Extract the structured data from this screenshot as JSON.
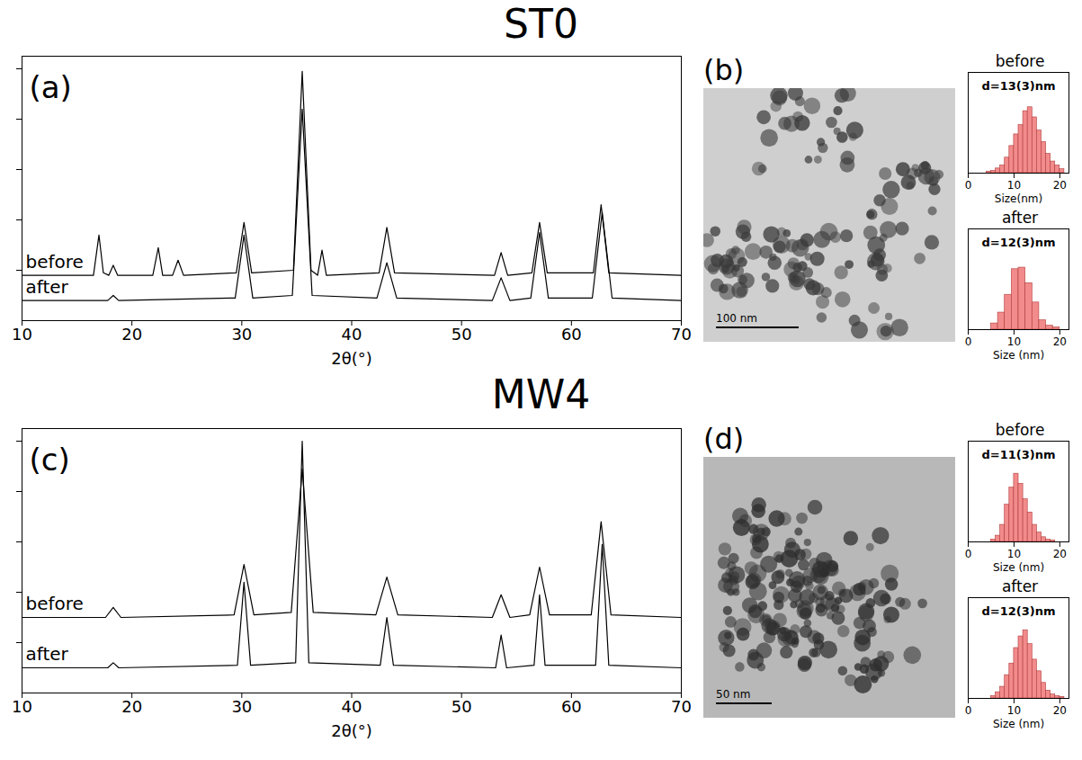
{
  "chart_data": [
    {
      "type": "line",
      "label": "(a)",
      "xlabel": "2θ(°)",
      "xlim": [
        10,
        70
      ],
      "xticks": [
        10,
        20,
        30,
        40,
        50,
        60,
        70
      ],
      "ylim": [
        0,
        105
      ],
      "yticks": [
        20,
        40,
        60,
        80,
        100
      ],
      "tick_labels": "x",
      "series": [
        {
          "name": "before",
          "color": "#000000",
          "line_style": "solid",
          "x": [
            10,
            16.5,
            17,
            17.4,
            17.9,
            18.3,
            18.7,
            21.9,
            22.4,
            22.8,
            23.7,
            24.2,
            24.7,
            29.5,
            30.2,
            30.9,
            34.7,
            35.5,
            36.3,
            36.9,
            37.3,
            37.7,
            42.5,
            43.2,
            43.9,
            53.0,
            53.6,
            54.2,
            56.4,
            57.1,
            57.8,
            62.0,
            62.7,
            63.4,
            70
          ],
          "values": [
            18,
            18,
            34,
            19,
            18,
            22,
            18,
            18,
            29,
            18,
            18,
            24,
            18,
            19,
            39,
            19,
            20,
            99,
            20,
            18,
            28,
            18,
            19,
            37,
            19,
            18,
            27,
            18,
            19,
            39,
            19,
            19,
            46,
            19,
            18
          ]
        },
        {
          "name": "after",
          "color": "#000000",
          "line_style": "solid",
          "x": [
            10,
            17.8,
            18.3,
            18.8,
            29.4,
            30.2,
            31.0,
            34.6,
            35.5,
            36.4,
            42.3,
            43.2,
            44.1,
            52.8,
            53.6,
            54.4,
            56.3,
            57.1,
            57.9,
            61.9,
            62.8,
            63.7,
            70
          ],
          "values": [
            8,
            8,
            10,
            8,
            9,
            34,
            9,
            10,
            84,
            10,
            9,
            23,
            9,
            8,
            17,
            8,
            9,
            35,
            9,
            9,
            43,
            9,
            8
          ]
        }
      ]
    },
    {
      "type": "histogram",
      "subtitle": "before",
      "title": "d=13(3)nm",
      "xlabel": "Size(nm)",
      "xlim": [
        0,
        22
      ],
      "xticks": [
        0,
        10,
        20
      ],
      "ylim": [
        0,
        130
      ],
      "tick_labels": "x",
      "color": "#f28b8b",
      "bins": [
        4,
        5,
        6,
        7,
        8,
        9,
        10,
        11,
        12,
        13,
        14,
        15,
        16,
        17,
        18,
        19,
        20,
        21
      ],
      "values": [
        2,
        3,
        6,
        10,
        20,
        35,
        50,
        62,
        80,
        85,
        72,
        55,
        40,
        25,
        15,
        10,
        5
      ]
    },
    {
      "type": "histogram",
      "subtitle": "after",
      "title": "d=12(3)nm",
      "xlabel": "Size (nm)",
      "xlim": [
        0,
        22
      ],
      "xticks": [
        0,
        10,
        20
      ],
      "ylim": [
        0,
        130
      ],
      "tick_labels": "x",
      "color": "#f28b8b",
      "bins": [
        5,
        6.5,
        8,
        9.5,
        11,
        12.5,
        14,
        15.5,
        17,
        18.5,
        20
      ],
      "values": [
        8,
        22,
        45,
        78,
        80,
        60,
        35,
        12,
        5,
        3
      ]
    },
    {
      "type": "line",
      "label": "(c)",
      "xlabel": "2θ(°)",
      "xlim": [
        10,
        70
      ],
      "xticks": [
        10,
        20,
        30,
        40,
        50,
        60,
        70
      ],
      "ylim": [
        0,
        105
      ],
      "yticks": [
        20,
        40,
        60,
        80,
        100
      ],
      "tick_labels": "x",
      "series": [
        {
          "name": "before",
          "color": "#000000",
          "line_style": "solid",
          "x": [
            10,
            17.6,
            18.3,
            19.0,
            29.3,
            30.2,
            31.1,
            34.5,
            35.5,
            36.5,
            42.2,
            43.2,
            44.2,
            52.8,
            53.6,
            54.4,
            56.2,
            57.1,
            58.0,
            61.8,
            62.7,
            63.6,
            70
          ],
          "values": [
            30,
            30,
            34,
            30,
            31,
            51,
            31,
            32,
            89,
            32,
            31,
            46,
            31,
            30,
            39,
            30,
            31,
            50,
            31,
            31,
            68,
            31,
            30
          ]
        },
        {
          "name": "after",
          "color": "#000000",
          "line_style": "solid",
          "x": [
            10,
            17.8,
            18.3,
            18.8,
            29.6,
            30.2,
            30.8,
            34.9,
            35.5,
            36.1,
            42.6,
            43.2,
            43.8,
            53.1,
            53.6,
            54.1,
            56.6,
            57.1,
            57.6,
            62.2,
            62.8,
            63.4,
            70
          ],
          "values": [
            10,
            10,
            12,
            10,
            11,
            44,
            11,
            12,
            100,
            12,
            11,
            30,
            11,
            10,
            23,
            10,
            11,
            39,
            11,
            11,
            59,
            11,
            10
          ]
        }
      ]
    },
    {
      "type": "histogram",
      "subtitle": "before",
      "title": "d=11(3)nm",
      "xlabel": "Size (nm)",
      "xlim": [
        0,
        22
      ],
      "xticks": [
        0,
        10,
        20
      ],
      "ylim": [
        0,
        130
      ],
      "tick_labels": "x",
      "color": "#f28b8b",
      "bins": [
        5,
        6,
        7,
        8,
        9,
        10,
        11,
        12,
        13,
        14,
        15,
        16,
        17,
        18,
        19
      ],
      "values": [
        3,
        8,
        22,
        48,
        70,
        88,
        75,
        55,
        38,
        22,
        12,
        6,
        3,
        2
      ]
    },
    {
      "type": "histogram",
      "subtitle": "after",
      "title": "d=12(3)nm",
      "xlabel": "Size (nm)",
      "xlim": [
        0,
        22
      ],
      "xticks": [
        0,
        10,
        20
      ],
      "ylim": [
        0,
        130
      ],
      "tick_labels": "x",
      "color": "#f28b8b",
      "bins": [
        5,
        6,
        7,
        8,
        9,
        10,
        11,
        12,
        13,
        14,
        15,
        16,
        17,
        18,
        19,
        20,
        21
      ],
      "values": [
        3,
        8,
        15,
        30,
        45,
        65,
        80,
        88,
        70,
        50,
        35,
        20,
        10,
        5,
        3,
        2
      ]
    }
  ],
  "figure": {
    "row_titles": [
      "ST0",
      "MW4"
    ],
    "images": [
      {
        "label": "(b)",
        "scale_bar": "100 nm"
      },
      {
        "label": "(d)",
        "scale_bar": "50 nm"
      }
    ]
  }
}
